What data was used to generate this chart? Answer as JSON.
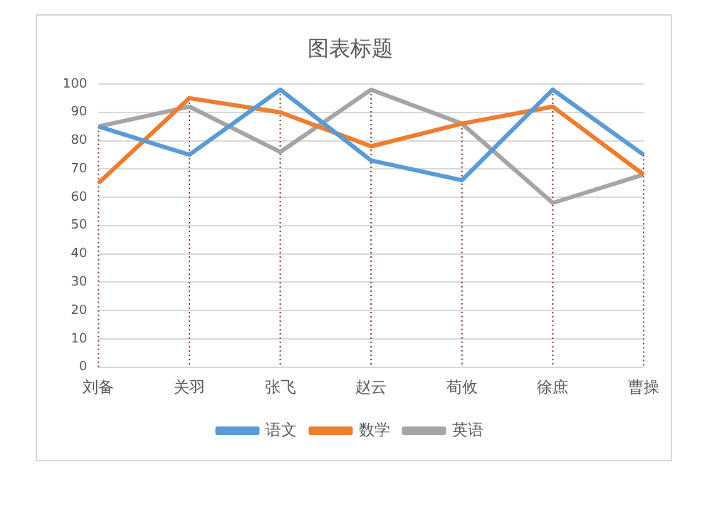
{
  "chart_data": {
    "type": "line",
    "title": "图表标题",
    "categories": [
      "刘备",
      "关羽",
      "张飞",
      "赵云",
      "荀攸",
      "徐庶",
      "曹操"
    ],
    "series": [
      {
        "name": "语文",
        "color": "#5b9bd5",
        "values": [
          85,
          75,
          98,
          73,
          66,
          98,
          75
        ]
      },
      {
        "name": "数学",
        "color": "#ed7d31",
        "values": [
          65,
          95,
          90,
          78,
          86,
          92,
          68
        ]
      },
      {
        "name": "英语",
        "color": "#a5a5a5",
        "values": [
          85,
          92,
          76,
          98,
          86,
          58,
          68
        ]
      }
    ],
    "ylim": [
      0,
      100
    ],
    "yticks": [
      0,
      10,
      20,
      30,
      40,
      50,
      60,
      70,
      80,
      90,
      100
    ],
    "grid": true,
    "legend": "bottom",
    "marker": "none",
    "line_style": "solid"
  }
}
